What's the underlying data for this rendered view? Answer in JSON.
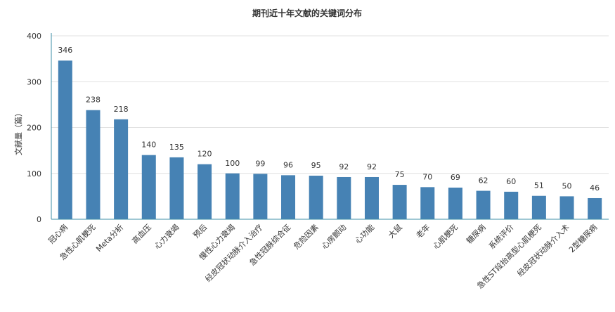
{
  "chart_data": {
    "type": "bar",
    "title": "期刊近十年文献的关键词分布",
    "xlabel": "",
    "ylabel": "文献量（篇）",
    "ylim": [
      0,
      400
    ],
    "yticks": [
      0,
      100,
      200,
      300,
      400
    ],
    "grid": true,
    "legend": "none",
    "bar_color": "#4682b4",
    "categories": [
      "冠心病",
      "急性心肌梗死",
      "Meta分析",
      "高血压",
      "心力衰竭",
      "预后",
      "慢性心力衰竭",
      "经皮冠状动脉介入治疗",
      "急性冠脉综合征",
      "危险因素",
      "心房颤动",
      "心功能",
      "大鼠",
      "老年",
      "心肌梗死",
      "糖尿病",
      "系统评价",
      "急性ST段抬高型心肌梗死",
      "经皮冠状动脉介入术",
      "2型糖尿病"
    ],
    "values": [
      346,
      238,
      218,
      140,
      135,
      120,
      100,
      99,
      96,
      95,
      92,
      92,
      75,
      70,
      69,
      62,
      60,
      51,
      50,
      46
    ]
  }
}
